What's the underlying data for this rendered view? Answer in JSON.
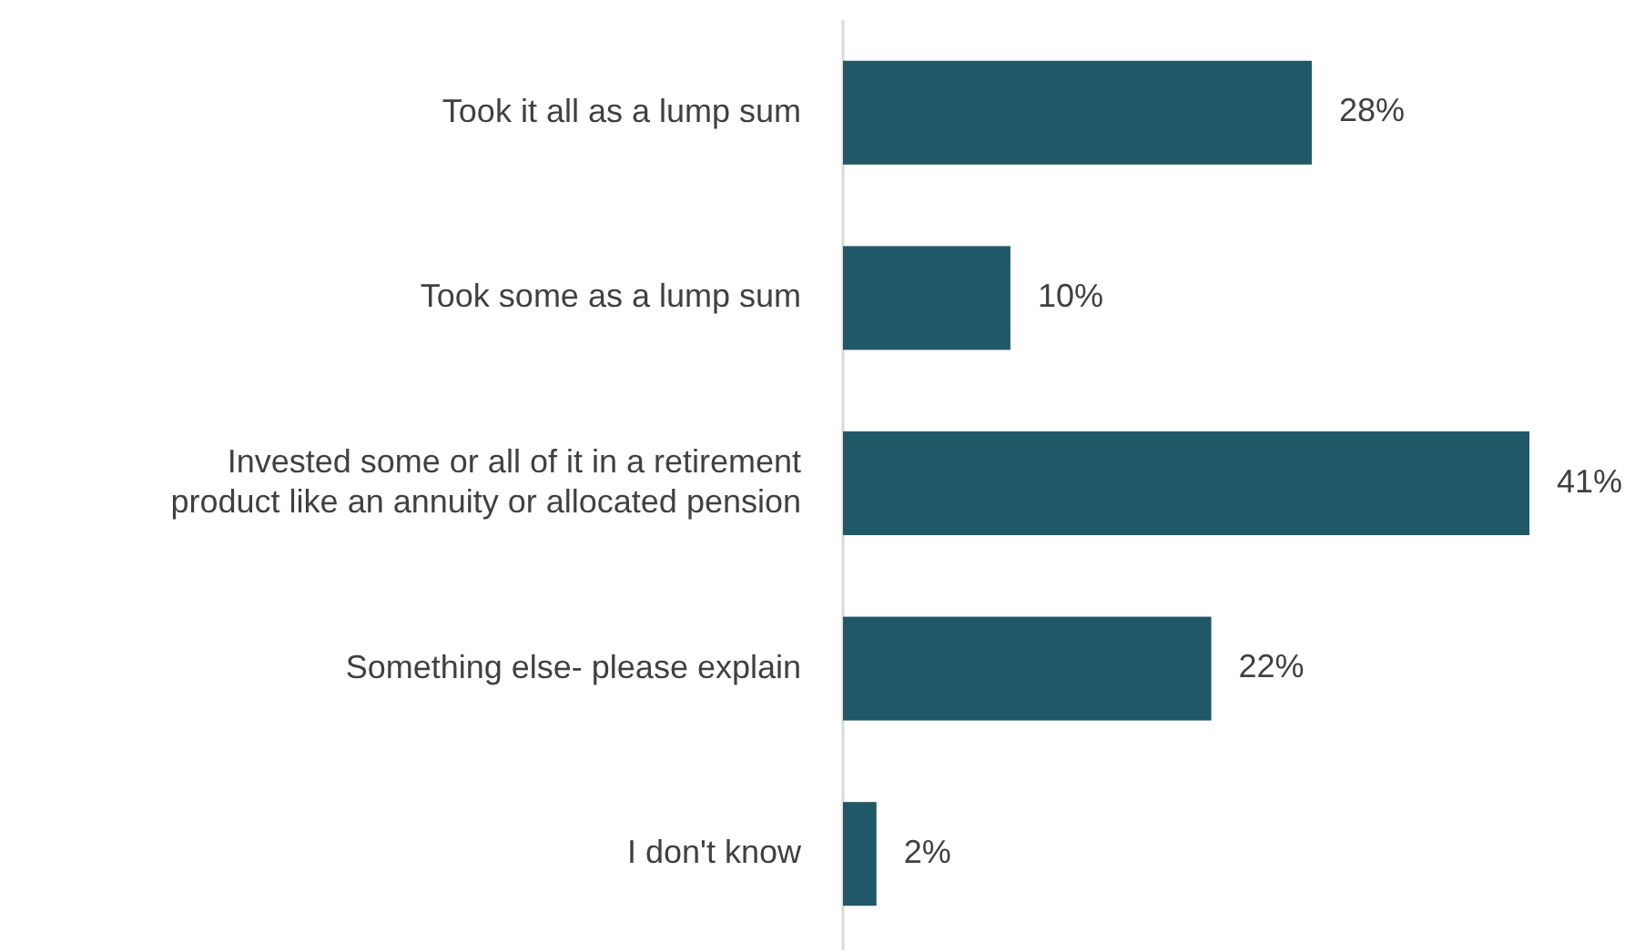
{
  "chart_data": {
    "type": "bar",
    "orientation": "horizontal",
    "categories": [
      "Took it all as a lump sum",
      "Took some as a lump sum",
      "Invested some or all of it in a retirement product like an annuity or allocated pension",
      "Something else- please explain",
      "I don't know"
    ],
    "values": [
      28,
      10,
      41,
      22,
      2
    ],
    "value_labels": [
      "28%",
      "10%",
      "41%",
      "22%",
      "2%"
    ],
    "color": "#215868"
  }
}
